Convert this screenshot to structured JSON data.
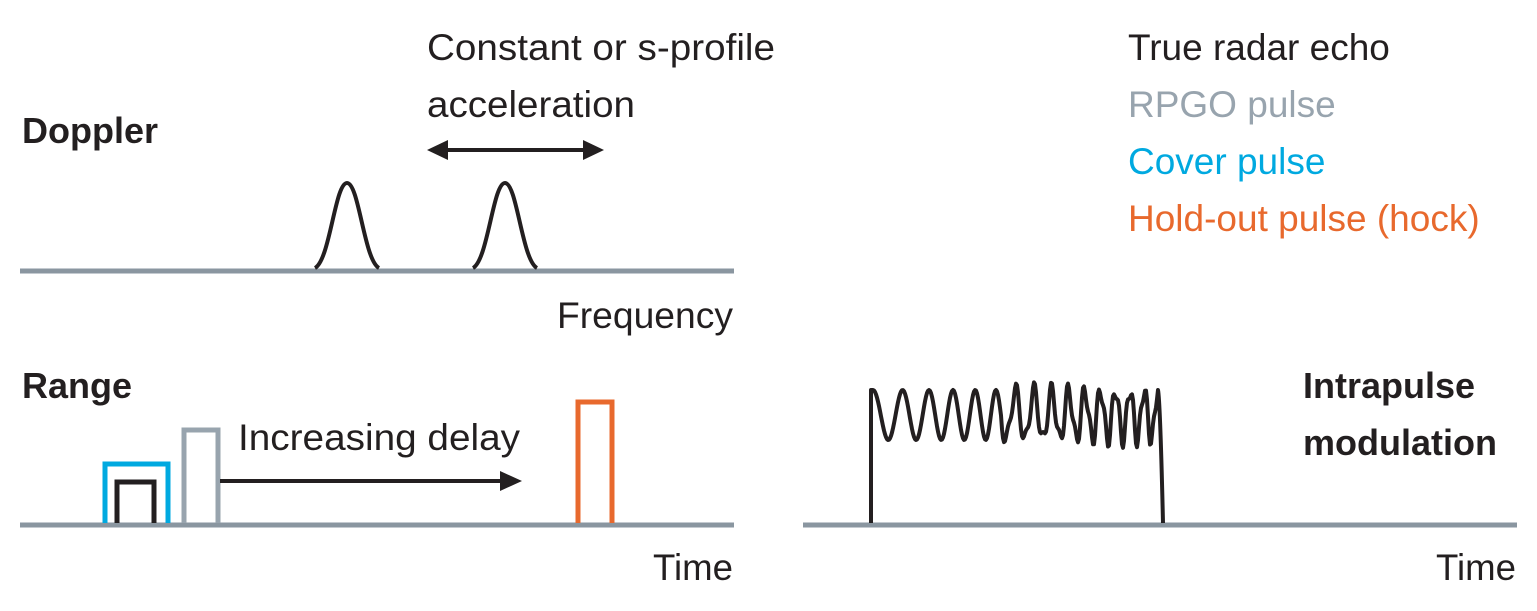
{
  "doppler": {
    "label": "Doppler",
    "annotation": [
      "Constant or s-profile",
      "acceleration"
    ],
    "axis_label": "Frequency"
  },
  "legend": [
    {
      "label": "True radar echo",
      "color": "#231f20"
    },
    {
      "label": "RPGO pulse",
      "color": "#98a4ae"
    },
    {
      "label": "Cover pulse",
      "color": "#00a9e0"
    },
    {
      "label": "Hold-out pulse (hock)",
      "color": "#e8692d"
    }
  ],
  "range": {
    "label": "Range",
    "annotation": "Increasing delay",
    "axis_label": "Time"
  },
  "intrapulse": {
    "label": [
      "Intrapulse",
      "modulation"
    ],
    "axis_label": "Time"
  }
}
